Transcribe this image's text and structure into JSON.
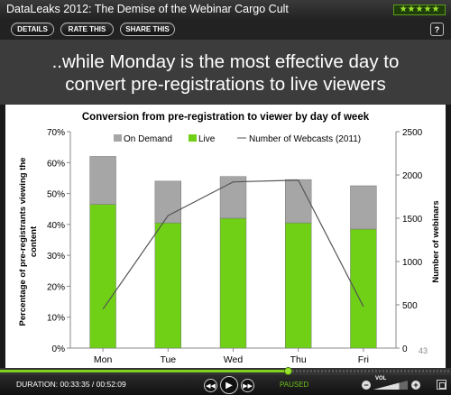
{
  "player": {
    "title": "DataLeaks 2012: The Demise of the Webinar Cargo Cult",
    "rating_stars": "★★★★★",
    "buttons": {
      "details": "DETAILS",
      "rate": "RATE THIS",
      "share": "SHARE THIS"
    },
    "help_label": "?"
  },
  "slide": {
    "headline_line1": "..while Monday is the most effective day to",
    "headline_line2": "convert pre-registrations to live viewers",
    "page_number": "43"
  },
  "chart_data": {
    "type": "bar",
    "title": "Conversion  from pre-registration to viewer by day of week",
    "categories": [
      "Mon",
      "Tue",
      "Wed",
      "Thu",
      "Fri"
    ],
    "stacked": true,
    "series": [
      {
        "name": "Live",
        "values": [
          46.5,
          40.5,
          42,
          40.5,
          38.5
        ],
        "color": "#6fd016"
      },
      {
        "name": "On Demand",
        "values": [
          15.5,
          13.5,
          13.5,
          14,
          14
        ],
        "color": "#a6a6a6"
      }
    ],
    "line_series": {
      "name": "Number of Webcasts (2011)",
      "values": [
        450,
        1530,
        1920,
        1940,
        480
      ],
      "color": "#555555",
      "axis": "right"
    },
    "legend_order": [
      "On Demand",
      "Live",
      "Number of Webcasts (2011)"
    ],
    "ylabel": "Percentage of pre-registrants viewing the content",
    "y2label": "Number of webinars",
    "ylim": [
      0,
      70
    ],
    "yticks": [
      "0%",
      "10%",
      "20%",
      "30%",
      "40%",
      "50%",
      "60%",
      "70%"
    ],
    "y2lim": [
      0,
      2500
    ],
    "y2ticks": [
      "0",
      "500",
      "1000",
      "1500",
      "2000",
      "2500"
    ],
    "grid": false,
    "legend_position": "top"
  },
  "controls": {
    "duration_text": "DURATION: 00:33:35 / 00:52:09",
    "status": "PAUSED",
    "vol_label": "VOL",
    "progress_fraction": 0.64,
    "volume_fraction": 0.75,
    "accent_color": "#7fd11b"
  }
}
